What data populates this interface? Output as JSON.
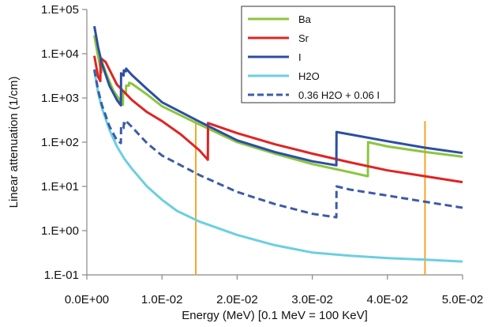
{
  "chart_data": {
    "type": "line",
    "title": "",
    "xlabel": "Energy (MeV) [0.1 MeV = 100 KeV]",
    "ylabel": "Linear attenuation (1/cm)",
    "x_scale": "linear",
    "y_scale": "log",
    "xlim": [
      0,
      0.05
    ],
    "ylim": [
      0.1,
      100000
    ],
    "grid": false,
    "legend_position": "top-right",
    "x_ticks": [
      0,
      0.01,
      0.02,
      0.03,
      0.04,
      0.05
    ],
    "x_tick_labels": [
      "0.0E+00",
      "1.0E-02",
      "2.0E-02",
      "3.0E-02",
      "4.0E-02",
      "5.0E-02"
    ],
    "y_ticks": [
      0.1,
      1,
      10,
      100,
      1000,
      10000,
      100000
    ],
    "y_tick_labels": [
      "1.E-01",
      "1.E+00",
      "1.E+01",
      "1.E+02",
      "1.E+03",
      "1.E+04",
      "1.E+05"
    ],
    "series": [
      {
        "name": "Ba",
        "color": "#8cc63f",
        "dash": "solid",
        "points": [
          [
            0.001,
            26000
          ],
          [
            0.0015,
            8500
          ],
          [
            0.00195,
            3800
          ],
          [
            0.00198,
            7000
          ],
          [
            0.0025,
            3800
          ],
          [
            0.0035,
            1500
          ],
          [
            0.0048,
            700
          ],
          [
            0.00483,
            1400
          ],
          [
            0.0052,
            1300
          ],
          [
            0.00523,
            1900
          ],
          [
            0.0056,
            1900
          ],
          [
            0.00563,
            2200
          ],
          [
            0.006,
            2100
          ],
          [
            0.008,
            1200
          ],
          [
            0.01,
            650
          ],
          [
            0.015,
            250
          ],
          [
            0.02,
            100
          ],
          [
            0.025,
            55
          ],
          [
            0.03,
            32
          ],
          [
            0.035,
            21
          ],
          [
            0.0374,
            17
          ],
          [
            0.03743,
            100
          ],
          [
            0.04,
            80
          ],
          [
            0.045,
            60
          ],
          [
            0.05,
            47
          ]
        ]
      },
      {
        "name": "Sr",
        "color": "#e02424",
        "dash": "solid",
        "points": [
          [
            0.001,
            9000
          ],
          [
            0.0015,
            3000
          ],
          [
            0.0018,
            2400
          ],
          [
            0.00183,
            8000
          ],
          [
            0.0025,
            6500
          ],
          [
            0.004,
            2000
          ],
          [
            0.006,
            900
          ],
          [
            0.008,
            480
          ],
          [
            0.01,
            300
          ],
          [
            0.0125,
            150
          ],
          [
            0.015,
            65
          ],
          [
            0.0161,
            40
          ],
          [
            0.01612,
            270
          ],
          [
            0.02,
            160
          ],
          [
            0.025,
            90
          ],
          [
            0.03,
            55
          ],
          [
            0.035,
            35
          ],
          [
            0.04,
            23
          ],
          [
            0.045,
            17
          ],
          [
            0.05,
            12.5
          ]
        ]
      },
      {
        "name": "I",
        "color": "#2c4fa3",
        "dash": "solid",
        "points": [
          [
            0.001,
            42000
          ],
          [
            0.0015,
            14000
          ],
          [
            0.002,
            6000
          ],
          [
            0.003,
            1900
          ],
          [
            0.004,
            900
          ],
          [
            0.00453,
            680
          ],
          [
            0.00456,
            3600
          ],
          [
            0.0049,
            3200
          ],
          [
            0.00493,
            4200
          ],
          [
            0.0052,
            4000
          ],
          [
            0.00523,
            4600
          ],
          [
            0.006,
            3300
          ],
          [
            0.008,
            1600
          ],
          [
            0.01,
            800
          ],
          [
            0.015,
            290
          ],
          [
            0.02,
            110
          ],
          [
            0.025,
            60
          ],
          [
            0.03,
            37
          ],
          [
            0.0332,
            30
          ],
          [
            0.03323,
            170
          ],
          [
            0.035,
            150
          ],
          [
            0.04,
            105
          ],
          [
            0.045,
            75
          ],
          [
            0.05,
            57
          ]
        ]
      },
      {
        "name": "H2O",
        "color": "#6ccfe0",
        "dash": "solid",
        "points": [
          [
            0.001,
            4200
          ],
          [
            0.0015,
            1300
          ],
          [
            0.002,
            600
          ],
          [
            0.003,
            190
          ],
          [
            0.004,
            80
          ],
          [
            0.005,
            42
          ],
          [
            0.006,
            25
          ],
          [
            0.008,
            10
          ],
          [
            0.01,
            5
          ],
          [
            0.012,
            2.8
          ],
          [
            0.015,
            1.6
          ],
          [
            0.02,
            0.8
          ],
          [
            0.025,
            0.47
          ],
          [
            0.03,
            0.32
          ],
          [
            0.035,
            0.27
          ],
          [
            0.04,
            0.24
          ],
          [
            0.045,
            0.22
          ],
          [
            0.05,
            0.2
          ]
        ]
      },
      {
        "name": "0.36 H2O + 0.06 I",
        "color": "#3b5ca8",
        "dash": "dashed",
        "points": [
          [
            0.001,
            4400
          ],
          [
            0.0015,
            1500
          ],
          [
            0.002,
            700
          ],
          [
            0.003,
            230
          ],
          [
            0.004,
            110
          ],
          [
            0.00453,
            95
          ],
          [
            0.00456,
            230
          ],
          [
            0.0049,
            210
          ],
          [
            0.00493,
            270
          ],
          [
            0.0052,
            260
          ],
          [
            0.00523,
            300
          ],
          [
            0.006,
            220
          ],
          [
            0.008,
            95
          ],
          [
            0.01,
            50
          ],
          [
            0.015,
            18
          ],
          [
            0.02,
            7.5
          ],
          [
            0.025,
            4
          ],
          [
            0.03,
            2.4
          ],
          [
            0.0332,
            2
          ],
          [
            0.03323,
            10
          ],
          [
            0.035,
            8.5
          ],
          [
            0.04,
            6.2
          ],
          [
            0.045,
            4.5
          ],
          [
            0.05,
            3.3
          ]
        ]
      }
    ],
    "vertical_markers": [
      {
        "x": 0.0145,
        "color": "#f5a623"
      },
      {
        "x": 0.045,
        "color": "#f5a623"
      }
    ]
  }
}
